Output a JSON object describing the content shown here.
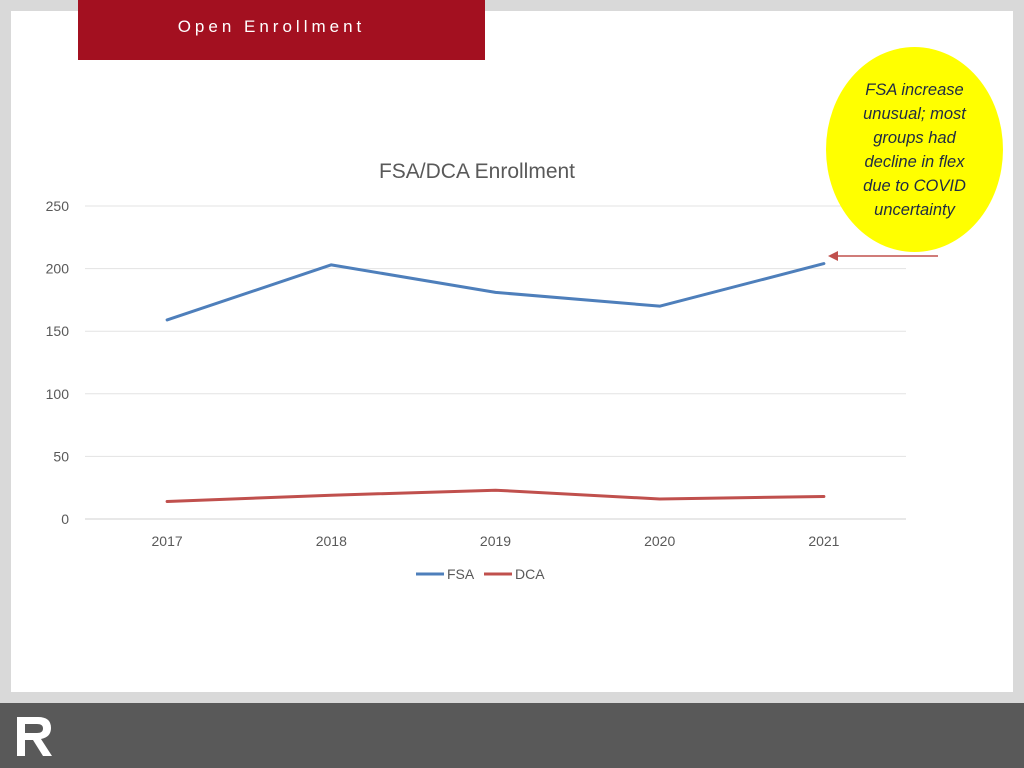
{
  "header": {
    "title": "Open Enrollment"
  },
  "callout": {
    "text": "FSA increase unusual; most groups had decline in flex due to COVID uncertainty"
  },
  "colors": {
    "header_red": "#a31020",
    "fsa": "#4e7fbb",
    "dca": "#c0504d",
    "callout_fill": "#ffff00",
    "arrow": "#c0504d",
    "footer": "#595959"
  },
  "logo": {
    "icon": "r-logo-icon"
  },
  "chart_data": {
    "type": "line",
    "title": "FSA/DCA Enrollment",
    "categories": [
      "2017",
      "2018",
      "2019",
      "2020",
      "2021"
    ],
    "series": [
      {
        "name": "FSA",
        "values": [
          159,
          203,
          181,
          170,
          204
        ]
      },
      {
        "name": "DCA",
        "values": [
          14,
          19,
          23,
          16,
          18
        ]
      }
    ],
    "ylim": [
      0,
      250
    ],
    "yticks": [
      "0",
      "50",
      "100",
      "150",
      "200",
      "250"
    ],
    "grid": true,
    "legend": "bottom"
  }
}
